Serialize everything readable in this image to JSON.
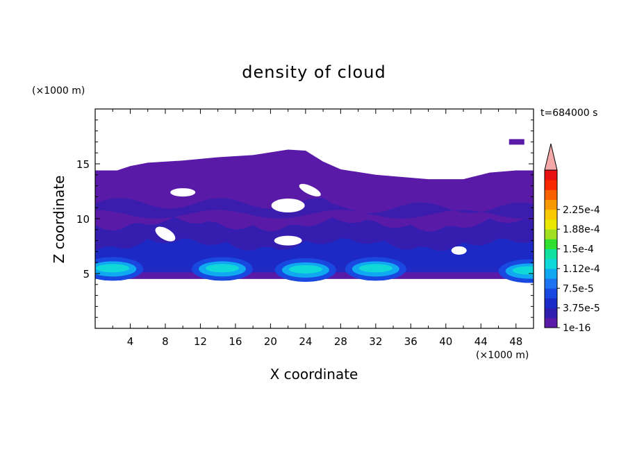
{
  "chart_data": {
    "type": "heatmap",
    "title": "density of cloud",
    "xlabel": "X coordinate",
    "ylabel": "Z coordinate",
    "x_unit": "(×1000 m)",
    "y_unit": "(×1000 m)",
    "time_label": "t=684000 s",
    "xlim": [
      0,
      50
    ],
    "ylim": [
      0,
      20
    ],
    "xticks": [
      4,
      8,
      12,
      16,
      20,
      24,
      28,
      32,
      36,
      40,
      44,
      48
    ],
    "yticks": [
      5,
      10,
      15
    ],
    "colorbar": {
      "labels": [
        "1e-16",
        "3.75e-5",
        "7.5e-5",
        "1.12e-4",
        "1.5e-4",
        "1.88e-4",
        "2.25e-4"
      ],
      "colors": [
        "#5a1aa8",
        "#2e1fb0",
        "#1a2bc8",
        "#1848e0",
        "#1e74f0",
        "#10a8f0",
        "#10d8d8",
        "#10e0a0",
        "#30e030",
        "#a0e020",
        "#e8e800",
        "#f8c800",
        "#f89800",
        "#f86000",
        "#f82800",
        "#e81010"
      ],
      "overflow_color": "#f4a8a8"
    },
    "cloud_layer": {
      "base_z": 4.5,
      "top_z_profile": [
        {
          "x": 0,
          "z": 14.4
        },
        {
          "x": 2.5,
          "z": 14.4
        },
        {
          "x": 4,
          "z": 14.8
        },
        {
          "x": 6,
          "z": 15.1
        },
        {
          "x": 10,
          "z": 15.3
        },
        {
          "x": 14,
          "z": 15.6
        },
        {
          "x": 18,
          "z": 15.8
        },
        {
          "x": 22,
          "z": 16.3
        },
        {
          "x": 24,
          "z": 16.2
        },
        {
          "x": 26,
          "z": 15.2
        },
        {
          "x": 28,
          "z": 14.5
        },
        {
          "x": 32,
          "z": 14.0
        },
        {
          "x": 38,
          "z": 13.6
        },
        {
          "x": 42,
          "z": 13.6
        },
        {
          "x": 45,
          "z": 14.2
        },
        {
          "x": 48,
          "z": 14.4
        },
        {
          "x": 50,
          "z": 14.4
        }
      ],
      "dense_cores": [
        {
          "x": 2,
          "z": 5.8
        },
        {
          "x": 14.5,
          "z": 5.8
        },
        {
          "x": 24,
          "z": 5.7
        },
        {
          "x": 32,
          "z": 5.8
        },
        {
          "x": 49.5,
          "z": 5.6
        }
      ],
      "clear_holes": [
        {
          "x": 10,
          "z": 12.4
        },
        {
          "x": 22,
          "z": 11.2
        },
        {
          "x": 24.5,
          "z": 12.6
        },
        {
          "x": 8,
          "z": 8.6
        },
        {
          "x": 22,
          "z": 8.0
        },
        {
          "x": 41.5,
          "z": 7.1
        }
      ],
      "detached_patch": {
        "x": 48,
        "z": 17.0
      }
    }
  }
}
